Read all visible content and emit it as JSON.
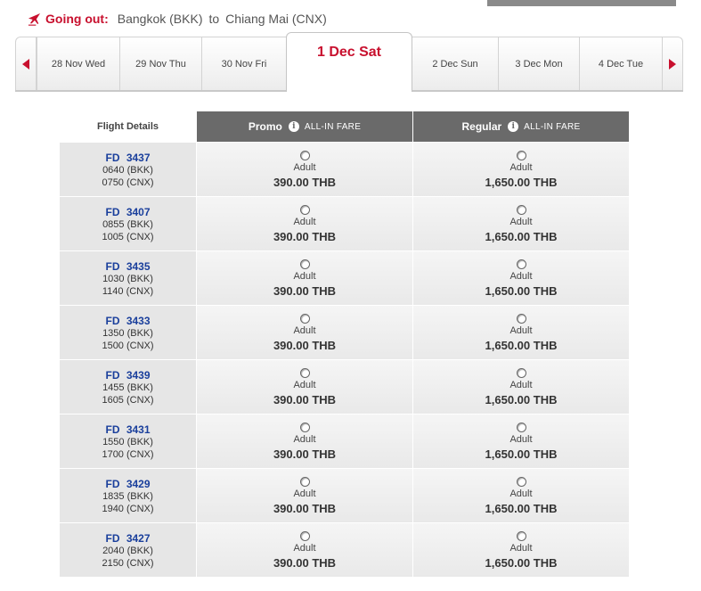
{
  "header": {
    "going_label": "Going out:",
    "origin": "Bangkok (BKK)",
    "to": "to",
    "destination": "Chiang Mai (CNX)"
  },
  "dates": [
    {
      "label": "28 Nov Wed",
      "active": false
    },
    {
      "label": "29 Nov Thu",
      "active": false
    },
    {
      "label": "30 Nov Fri",
      "active": false
    },
    {
      "label": "1 Dec Sat",
      "active": true
    },
    {
      "label": "2 Dec Sun",
      "active": false
    },
    {
      "label": "3 Dec Mon",
      "active": false
    },
    {
      "label": "4 Dec Tue",
      "active": false
    }
  ],
  "table": {
    "details_header": "Flight Details",
    "fares": [
      {
        "name": "Promo",
        "tag": "ALL-IN FARE"
      },
      {
        "name": "Regular",
        "tag": "ALL-IN FARE"
      }
    ]
  },
  "flights": [
    {
      "number": "FD 3437",
      "dep": "0640 (BKK)",
      "arr": "0750 (CNX)",
      "pax": "Adult",
      "promo": "390.00 THB",
      "regular": "1,650.00 THB"
    },
    {
      "number": "FD 3407",
      "dep": "0855 (BKK)",
      "arr": "1005 (CNX)",
      "pax": "Adult",
      "promo": "390.00 THB",
      "regular": "1,650.00 THB"
    },
    {
      "number": "FD 3435",
      "dep": "1030 (BKK)",
      "arr": "1140 (CNX)",
      "pax": "Adult",
      "promo": "390.00 THB",
      "regular": "1,650.00 THB"
    },
    {
      "number": "FD 3433",
      "dep": "1350 (BKK)",
      "arr": "1500 (CNX)",
      "pax": "Adult",
      "promo": "390.00 THB",
      "regular": "1,650.00 THB"
    },
    {
      "number": "FD 3439",
      "dep": "1455 (BKK)",
      "arr": "1605 (CNX)",
      "pax": "Adult",
      "promo": "390.00 THB",
      "regular": "1,650.00 THB"
    },
    {
      "number": "FD 3431",
      "dep": "1550 (BKK)",
      "arr": "1700 (CNX)",
      "pax": "Adult",
      "promo": "390.00 THB",
      "regular": "1,650.00 THB"
    },
    {
      "number": "FD 3429",
      "dep": "1835 (BKK)",
      "arr": "1940 (CNX)",
      "pax": "Adult",
      "promo": "390.00 THB",
      "regular": "1,650.00 THB"
    },
    {
      "number": "FD 3427",
      "dep": "2040 (BKK)",
      "arr": "2150 (CNX)",
      "pax": "Adult",
      "promo": "390.00 THB",
      "regular": "1,650.00 THB"
    }
  ],
  "icons": {
    "plane": "plane-icon",
    "info": "info-icon",
    "prev": "arrow-left-icon",
    "next": "arrow-right-icon"
  },
  "colors": {
    "accent": "#c8102e",
    "flight_link": "#1a3f9c",
    "fare_header": "#6a6a6a"
  }
}
